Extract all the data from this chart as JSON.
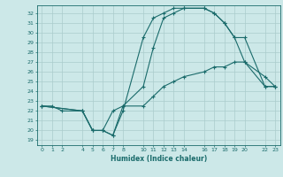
{
  "xlabel": "Humidex (Indice chaleur)",
  "bg_color": "#cce8e8",
  "grid_color": "#aacccc",
  "line_color": "#1a6b6b",
  "xlim": [
    -0.5,
    23.5
  ],
  "ylim": [
    18.5,
    32.8
  ],
  "xticks": [
    0,
    1,
    2,
    4,
    5,
    6,
    7,
    8,
    10,
    11,
    12,
    13,
    14,
    16,
    17,
    18,
    19,
    20,
    22,
    23
  ],
  "yticks": [
    19,
    20,
    21,
    22,
    23,
    24,
    25,
    26,
    27,
    28,
    29,
    30,
    31,
    32
  ],
  "line1_x": [
    0,
    1,
    2,
    4,
    5,
    6,
    7,
    8,
    10,
    11,
    12,
    13,
    14,
    16,
    17,
    18,
    19,
    20,
    22,
    23
  ],
  "line1_y": [
    22.5,
    22.5,
    22.0,
    22.0,
    20.0,
    20.0,
    19.5,
    22.0,
    29.5,
    31.5,
    32.0,
    32.5,
    32.5,
    32.5,
    32.0,
    31.0,
    29.5,
    29.5,
    24.5,
    24.5
  ],
  "line2_x": [
    0,
    4,
    5,
    6,
    7,
    8,
    10,
    11,
    12,
    13,
    14,
    16,
    17,
    18,
    19,
    20,
    22,
    23
  ],
  "line2_y": [
    22.5,
    22.0,
    20.0,
    20.0,
    19.5,
    22.5,
    24.5,
    28.5,
    31.5,
    32.0,
    32.5,
    32.5,
    32.0,
    31.0,
    29.5,
    27.0,
    25.5,
    24.5
  ],
  "line3_x": [
    0,
    4,
    5,
    6,
    7,
    8,
    10,
    11,
    12,
    13,
    14,
    16,
    17,
    18,
    19,
    20,
    22,
    23
  ],
  "line3_y": [
    22.5,
    22.0,
    20.0,
    20.0,
    22.0,
    22.5,
    22.5,
    23.5,
    24.5,
    25.0,
    25.5,
    26.0,
    26.5,
    26.5,
    27.0,
    27.0,
    24.5,
    24.5
  ]
}
